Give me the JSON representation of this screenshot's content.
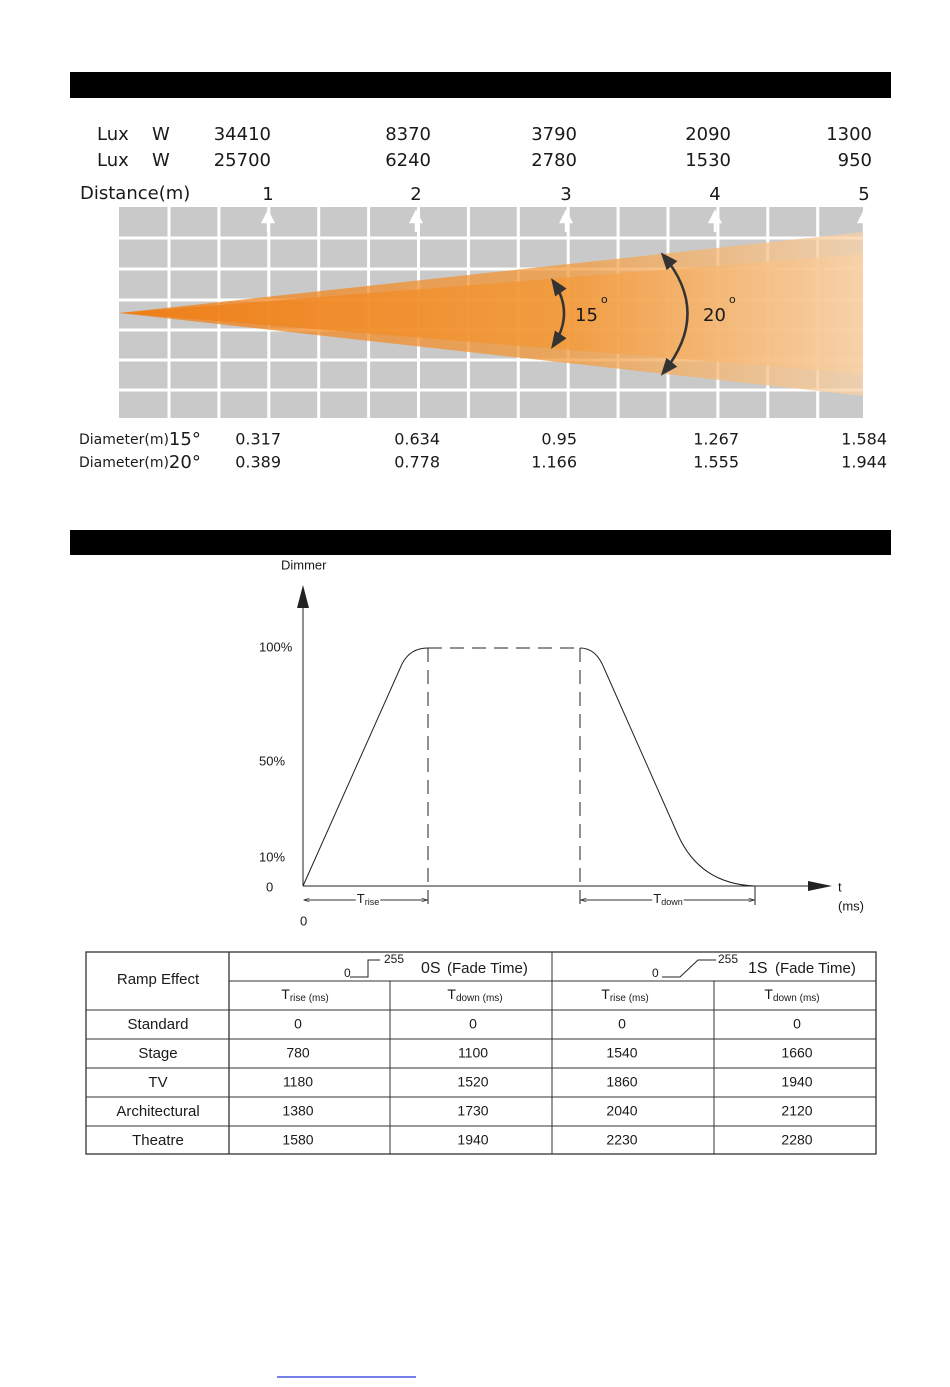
{
  "lux_photometric": {
    "lux_rows": [
      {
        "label": "Lux",
        "unit": "W",
        "values": [
          34410,
          8370,
          3790,
          2090,
          1300
        ]
      },
      {
        "label": "Lux",
        "unit": "W",
        "values": [
          25700,
          6240,
          2780,
          1530,
          950
        ]
      }
    ],
    "distance_label": "Distance(m)",
    "distances": [
      1,
      2,
      3,
      4,
      5
    ],
    "beam_angles": [
      {
        "value": "15",
        "degree": "o"
      },
      {
        "value": "20",
        "degree": "o"
      }
    ],
    "diameter_rows": [
      {
        "label": "Diameter(m)",
        "angle": "15°",
        "values": [
          0.317,
          0.634,
          0.95,
          1.267,
          1.584
        ]
      },
      {
        "label": "Diameter(m)",
        "angle": "20°",
        "values": [
          0.389,
          0.778,
          1.166,
          1.555,
          1.944
        ]
      }
    ]
  },
  "dimmer_curve": {
    "y_label": "Dimmer",
    "y_levels": [
      "100%",
      "50%",
      "10%",
      "0"
    ],
    "x_origin": "0",
    "x_label": "t",
    "x_unit": "(ms)",
    "rise": {
      "symbol": "T",
      "subscript": "rise"
    },
    "down": {
      "symbol": "T",
      "subscript": "down"
    }
  },
  "ramp_table": {
    "corner": "Ramp Effect",
    "groups": [
      {
        "low": "0",
        "high": "255",
        "mode": "0S",
        "note": "(Fade Time)"
      },
      {
        "low": "0",
        "high": "255",
        "mode": "1S",
        "note": "(Fade Time)"
      }
    ],
    "columns": [
      {
        "symbol": "T",
        "subscript": "rise (ms)"
      },
      {
        "symbol": "T",
        "subscript": "down (ms)"
      },
      {
        "symbol": "T",
        "subscript": "rise (ms)"
      },
      {
        "symbol": "T",
        "subscript": "down (ms)"
      }
    ],
    "rows": [
      [
        "Standard",
        0,
        0,
        0,
        0
      ],
      [
        "Stage",
        780,
        1100,
        1540,
        1660
      ],
      [
        "TV",
        1180,
        1520,
        1860,
        1940
      ],
      [
        "Architectural",
        1380,
        1730,
        2040,
        2120
      ],
      [
        "Theatre",
        1580,
        1940,
        2230,
        2280
      ]
    ]
  }
}
